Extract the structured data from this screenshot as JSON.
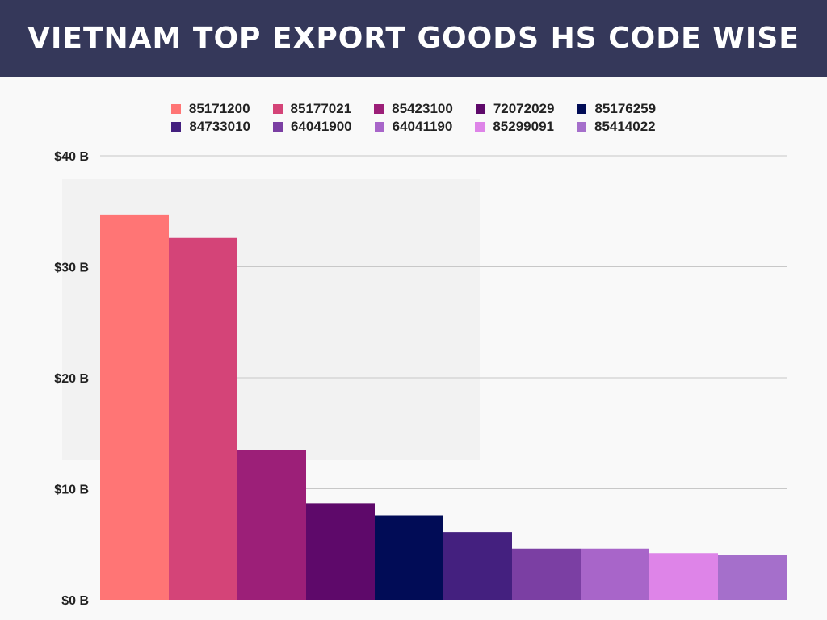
{
  "header": {
    "title": "VIETNAM TOP EXPORT GOODS HS CODE WISE"
  },
  "chart_data": {
    "type": "bar",
    "title": "VIETNAM TOP EXPORT GOODS HS CODE WISE",
    "xlabel": "",
    "ylabel": "",
    "ylim": [
      0,
      40
    ],
    "y_ticks": [
      "$0 B",
      "$10 B",
      "$20 B",
      "$30 B",
      "$40 B"
    ],
    "y_tick_values": [
      0,
      10,
      20,
      30,
      40
    ],
    "grid": true,
    "legend_placement": "top",
    "categories": [
      "85171200",
      "85177021",
      "85423100",
      "72072029",
      "85176259",
      "84733010",
      "64041900",
      "64041190",
      "85299091",
      "85414022"
    ],
    "values": [
      34.7,
      32.6,
      13.5,
      8.7,
      7.6,
      6.1,
      4.6,
      4.6,
      4.2,
      4.0
    ],
    "colors": [
      "#ff7575",
      "#d44478",
      "#9c1f78",
      "#5e096a",
      "#010c56",
      "#44207f",
      "#7b3fa3",
      "#a865c9",
      "#de84e8",
      "#a56fcb"
    ]
  }
}
